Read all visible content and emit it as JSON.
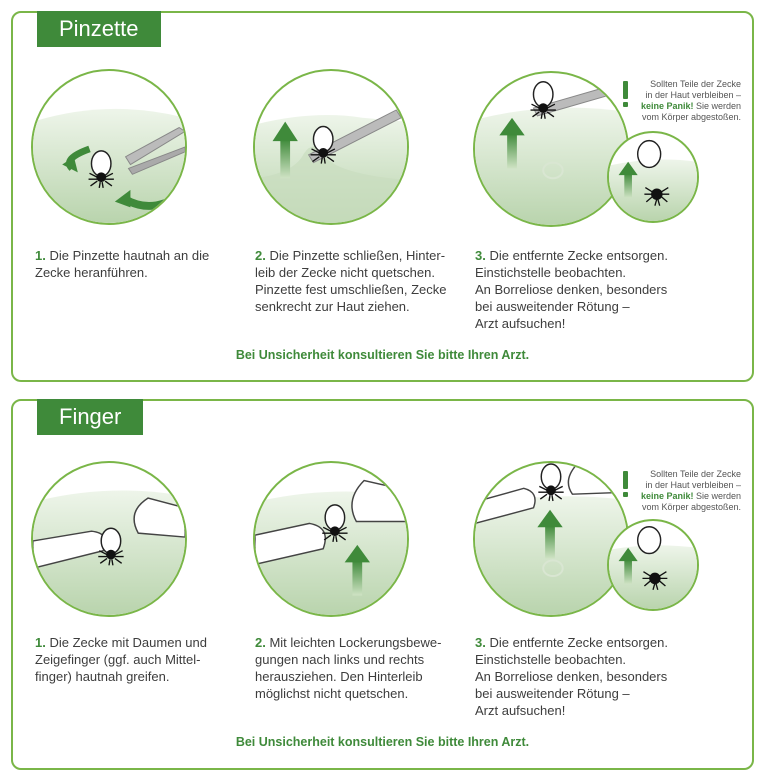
{
  "sections": [
    {
      "title": "Pinzette",
      "steps": [
        {
          "num": "1.",
          "lines": [
            "Die Pinzette hautnah an die",
            "Zecke heranführen."
          ]
        },
        {
          "num": "2.",
          "lines": [
            "Die Pinzette schließen, Hinter-",
            "leib der Zecke nicht quetschen.",
            "Pinzette fest umschließen, Zecke",
            "senkrecht zur Haut ziehen."
          ]
        },
        {
          "num": "3.",
          "lines": [
            "Die entfernte Zecke entsorgen.",
            "Einstichstelle beobachten.",
            "An Borreliose denken, besonders",
            "bei ausweitender Rötung –",
            "Arzt aufsuchen!"
          ]
        }
      ],
      "warning": {
        "line1": "Sollten Teile der Zecke",
        "line2": "in der Haut verbleiben –",
        "bold": "keine Panik!",
        "line3rest": " Sie werden",
        "line4": "vom Körper abgestoßen."
      },
      "notice": "Bei Unsicherheit konsultieren Sie bitte Ihren Arzt."
    },
    {
      "title": "Finger",
      "steps": [
        {
          "num": "1.",
          "lines": [
            "Die Zecke mit Daumen und",
            "Zeigefinger (ggf. auch Mittel-",
            "finger) hautnah greifen."
          ]
        },
        {
          "num": "2.",
          "lines": [
            "Mit leichten Lockerungsbewe-",
            "gungen nach links und rechts",
            "herausziehen. Den Hinterleib",
            "möglichst nicht quetschen."
          ]
        },
        {
          "num": "3.",
          "lines": [
            "Die entfernte Zecke entsorgen.",
            "Einstichstelle beobachten.",
            "An Borreliose denken, besonders",
            "bei ausweitender Rötung –",
            "Arzt aufsuchen!"
          ]
        }
      ],
      "warning": {
        "line1": "Sollten Teile der Zecke",
        "line2": "in der Haut verbleiben –",
        "bold": "keine Panik!",
        "line3rest": " Sie werden",
        "line4": "vom Körper abgestoßen."
      },
      "notice": "Bei Unsicherheit konsultieren Sie bitte Ihren Arzt."
    }
  ],
  "colors": {
    "accent": "#3f8a3a",
    "border": "#7ab648",
    "skin": "#d7e6cf"
  }
}
